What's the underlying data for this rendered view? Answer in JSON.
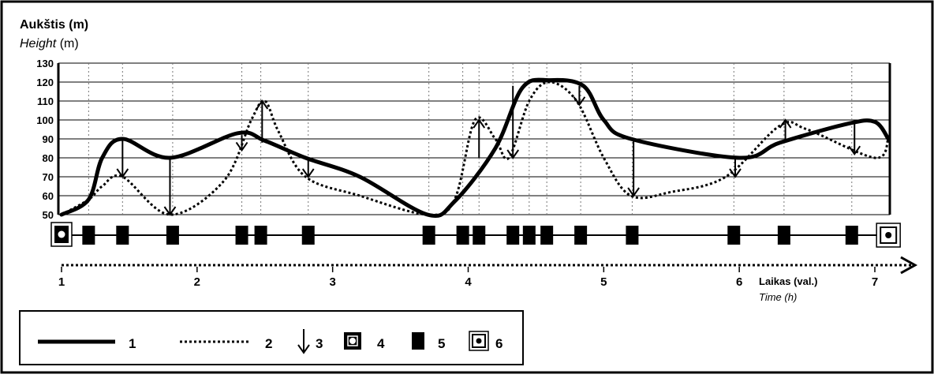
{
  "chart_data": {
    "type": "line",
    "title_lt": "Aukštis (m)",
    "title_en_italic": "Height",
    "title_en_unit": " (m)",
    "xlabel_lt": "Laikas (val.)",
    "xlabel_en": "Time (h)",
    "ylim": [
      50,
      130
    ],
    "yticks": [
      "50",
      "60",
      "70",
      "80",
      "90",
      "100",
      "110",
      "120",
      "130"
    ],
    "xlim": [
      1,
      7.1
    ],
    "xticks": [
      "1",
      "2",
      "3",
      "4",
      "5",
      "6",
      "7"
    ],
    "grid": true,
    "series": [
      {
        "name": "1",
        "style": "solid",
        "x": [
          1.0,
          1.2,
          1.3,
          1.45,
          1.8,
          2.3,
          2.5,
          2.8,
          3.2,
          3.7,
          3.9,
          4.2,
          4.4,
          4.6,
          4.85,
          5.0,
          5.2,
          6.0,
          6.3,
          6.8,
          7.0,
          7.1
        ],
        "y": [
          50,
          58,
          80,
          90,
          80,
          93,
          89,
          80,
          70,
          50,
          57,
          85,
          117,
          121,
          118,
          100,
          90,
          80,
          88,
          98,
          99,
          90
        ]
      },
      {
        "name": "2",
        "style": "dotted",
        "x": [
          1.0,
          1.2,
          1.3,
          1.45,
          1.8,
          2.2,
          2.4,
          2.5,
          2.6,
          2.8,
          3.2,
          3.7,
          3.9,
          4.05,
          4.2,
          4.3,
          4.45,
          4.6,
          4.8,
          5.0,
          5.2,
          5.5,
          5.9,
          6.3,
          6.5,
          7.0,
          7.1
        ],
        "y": [
          50,
          58,
          65,
          70,
          50,
          68,
          100,
          110,
          94,
          70,
          60,
          50,
          58,
          100,
          90,
          80,
          110,
          120,
          110,
          80,
          60,
          62,
          70,
          97,
          95,
          80,
          90
        ]
      }
    ],
    "arrows": [
      {
        "x": 1.45,
        "y_from": 90,
        "y_to": 70
      },
      {
        "x": 1.8,
        "y_from": 80,
        "y_to": 50
      },
      {
        "x": 2.33,
        "y_from": 92,
        "y_to": 84
      },
      {
        "x": 2.48,
        "y_from": 88,
        "y_to": 110
      },
      {
        "x": 2.82,
        "y_from": 80,
        "y_to": 70
      },
      {
        "x": 4.08,
        "y_from": 80,
        "y_to": 100
      },
      {
        "x": 4.33,
        "y_from": 118,
        "y_to": 80
      },
      {
        "x": 4.82,
        "y_from": 118,
        "y_to": 108
      },
      {
        "x": 5.22,
        "y_from": 90,
        "y_to": 60
      },
      {
        "x": 5.97,
        "y_from": 80,
        "y_to": 70
      },
      {
        "x": 6.34,
        "y_from": 89,
        "y_to": 100
      },
      {
        "x": 6.85,
        "y_from": 98,
        "y_to": 82
      }
    ],
    "start_marker_x": 1.0,
    "end_marker_x": 7.1,
    "stop_markers_x": [
      1.2,
      1.45,
      1.82,
      2.33,
      2.47,
      2.82,
      3.71,
      3.96,
      4.08,
      4.33,
      4.45,
      4.58,
      4.83,
      5.21,
      5.96,
      6.33,
      6.83
    ],
    "legend": {
      "placement": "bottom-left",
      "items": [
        {
          "symbol": "solid-line",
          "label": "1"
        },
        {
          "symbol": "dotted-line",
          "label": "2"
        },
        {
          "symbol": "down-arrow",
          "label": "3"
        },
        {
          "symbol": "start-marker",
          "label": "4"
        },
        {
          "symbol": "stop-marker",
          "label": "5"
        },
        {
          "symbol": "end-marker",
          "label": "6"
        }
      ]
    }
  }
}
